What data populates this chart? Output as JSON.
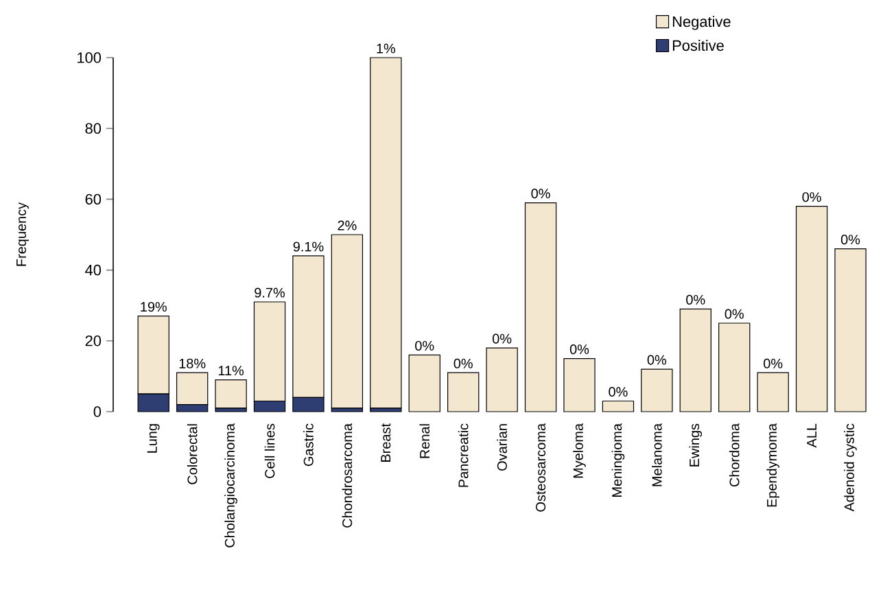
{
  "chart_data": {
    "type": "bar",
    "stacked": true,
    "ylabel": "Frequency",
    "categories": [
      "Lung",
      "Colorectal",
      "Cholangiocarcinoma",
      "Cell lines",
      "Gastric",
      "Chondrosarcoma",
      "Breast",
      "Renal",
      "Pancreatic",
      "Ovarian",
      "Osteosarcoma",
      "Myeloma",
      "Meningioma",
      "Melanoma",
      "Ewings",
      "Chordoma",
      "Ependymoma",
      "ALL",
      "Adenoid cystic"
    ],
    "series": [
      {
        "name": "Positive",
        "color": "#2e3d72",
        "values": [
          5,
          2,
          1,
          3,
          4,
          1,
          1,
          0,
          0,
          0,
          0,
          0,
          0,
          0,
          0,
          0,
          0,
          0,
          0
        ]
      },
      {
        "name": "Negative",
        "color": "#f3e7d0",
        "values": [
          22,
          9,
          8,
          28,
          40,
          49,
          99,
          16,
          11,
          18,
          59,
          15,
          3,
          12,
          29,
          25,
          11,
          58,
          46
        ]
      }
    ],
    "annotations": [
      {
        "text": "19%",
        "x": "Lung",
        "y": 27
      },
      {
        "text": "18%",
        "x": "Colorectal",
        "y": 11
      },
      {
        "text": "11%",
        "x": "Cholangiocarcinoma",
        "y": 9
      },
      {
        "text": "9.7%",
        "x": "Cell lines",
        "y": 31
      },
      {
        "text": "9.1%",
        "x": "Gastric",
        "y": 44
      },
      {
        "text": "2%",
        "x": "Chondrosarcoma",
        "y": 50
      },
      {
        "text": "1%",
        "x": "Breast",
        "y": 100
      },
      {
        "text": "0%",
        "x": "Renal",
        "y": 16
      },
      {
        "text": "0%",
        "x": "Pancreatic",
        "y": 11
      },
      {
        "text": "0%",
        "x": "Ovarian",
        "y": 18
      },
      {
        "text": "0%",
        "x": "Osteosarcoma",
        "y": 59
      },
      {
        "text": "0%",
        "x": "Myeloma",
        "y": 15
      },
      {
        "text": "0%",
        "x": "Meningioma",
        "y": 3
      },
      {
        "text": "0%",
        "x": "Melanoma",
        "y": 12
      },
      {
        "text": "0%",
        "x": "Ewings",
        "y": 29
      },
      {
        "text": "0%",
        "x": "Chordoma",
        "y": 25
      },
      {
        "text": "0%",
        "x": "Ependymoma",
        "y": 11
      },
      {
        "text": "0%",
        "x": "ALL",
        "y": 58
      },
      {
        "text": "0%",
        "x": "Adenoid cystic",
        "y": 46
      }
    ],
    "ylim": [
      0,
      100
    ],
    "yticks": [
      0,
      20,
      40,
      60,
      80,
      100
    ],
    "legend": "top right",
    "grid": false
  }
}
